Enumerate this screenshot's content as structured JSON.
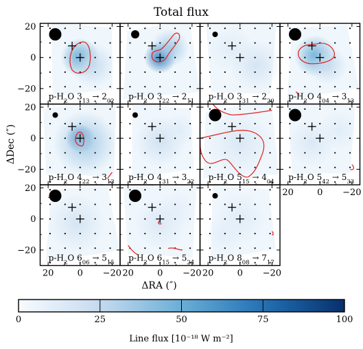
{
  "chart_data": {
    "type": "heatmap",
    "title": "Total flux",
    "xlabel": "ΔRA (″)",
    "ylabel": "ΔDec (″)",
    "xlim": [
      25,
      -25
    ],
    "ylim": [
      -30,
      22
    ],
    "x_ticks": [
      20,
      0,
      -20
    ],
    "y_ticks": [
      20,
      0,
      -20
    ],
    "x_tick_labels": [
      "20",
      "0",
      "−20"
    ],
    "y_tick_labels": [
      "20",
      "0",
      "−20"
    ],
    "grid": false,
    "colorbar": {
      "label": "Line flux [10⁻¹⁸ W m⁻²]",
      "range": [
        0,
        100
      ],
      "ticks": [
        0,
        25,
        50,
        75,
        100
      ],
      "tick_labels": [
        "0",
        "25",
        "50",
        "75",
        "100"
      ],
      "colormap": "Blues",
      "orientation": "horizontal"
    },
    "contour_color": "#e0201b",
    "grid_dot_spacing_arcsec": 9.4,
    "markers": {
      "central_cross": [
        0,
        0
      ],
      "offset_cross": [
        5,
        7.5
      ]
    },
    "panels": [
      {
        "label_prefix": "p-H",
        "label_sub": "2",
        "label_mid": "O ",
        "upper_j": "3",
        "upper_sub": "13",
        "lower_j": "2",
        "lower_sub": "02",
        "beam_size": "large",
        "contour_level": 50,
        "blobs": [
          {
            "x": 0,
            "y": 0,
            "r": 12,
            "a": 0.55
          },
          {
            "x": -8,
            "y": -5,
            "r": 14,
            "a": 0.25
          }
        ]
      },
      {
        "label_prefix": "p-H",
        "label_sub": "2",
        "label_mid": "O ",
        "upper_j": "3",
        "upper_sub": "22",
        "lower_j": "2",
        "lower_sub": "11",
        "beam_size": "medium",
        "contour_level": 50,
        "blobs": [
          {
            "x": 0,
            "y": 0,
            "r": 10,
            "a": 0.75
          },
          {
            "x": -6,
            "y": 6,
            "r": 12,
            "a": 0.35
          }
        ]
      },
      {
        "label_prefix": "p-H",
        "label_sub": "2",
        "label_mid": "O ",
        "upper_j": "3",
        "upper_sub": "31",
        "lower_j": "2",
        "lower_sub": "20",
        "beam_size": "small",
        "contour_level": 50,
        "blobs": [
          {
            "x": -10,
            "y": -5,
            "r": 16,
            "a": 0.18
          },
          {
            "x": 5,
            "y": 5,
            "r": 14,
            "a": 0.12
          }
        ]
      },
      {
        "label_prefix": "p-H",
        "label_sub": "2",
        "label_mid": "O ",
        "upper_j": "4",
        "upper_sub": "04",
        "lower_j": "3",
        "lower_sub": "13",
        "beam_size": "large",
        "contour_level": 50,
        "blobs": [
          {
            "x": 3,
            "y": 1,
            "r": 13,
            "a": 0.5
          },
          {
            "x": -5,
            "y": -5,
            "r": 12,
            "a": 0.25
          }
        ]
      },
      {
        "label_prefix": "p-H",
        "label_sub": "2",
        "label_mid": "O ",
        "upper_j": "4",
        "upper_sub": "22",
        "lower_j": "3",
        "lower_sub": "13",
        "beam_size": "small",
        "contour_level": 50,
        "blobs": [
          {
            "x": 0,
            "y": 0,
            "r": 9,
            "a": 0.8
          },
          {
            "x": -3,
            "y": -3,
            "r": 20,
            "a": 0.35
          }
        ]
      },
      {
        "label_prefix": "p-H",
        "label_sub": "2",
        "label_mid": "O ",
        "upper_j": "4",
        "upper_sub": "31",
        "lower_j": "3",
        "lower_sub": "22",
        "beam_size": "small",
        "contour_level": 50,
        "blobs": [
          {
            "x": 0,
            "y": -2,
            "r": 16,
            "a": 0.2
          },
          {
            "x": -12,
            "y": 5,
            "r": 10,
            "a": 0.12
          }
        ]
      },
      {
        "label_prefix": "p-H",
        "label_sub": "2",
        "label_mid": "O ",
        "upper_j": "5",
        "upper_sub": "15",
        "lower_j": "4",
        "lower_sub": "04",
        "beam_size": "large",
        "contour_level": 25,
        "blobs": [
          {
            "x": 0,
            "y": -3,
            "r": 20,
            "a": 0.15
          }
        ]
      },
      {
        "label_prefix": "p-H",
        "label_sub": "2",
        "label_mid": "O ",
        "upper_j": "5",
        "upper_sub": "42",
        "lower_j": "5",
        "lower_sub": "33",
        "beam_size": "large",
        "contour_level": 25,
        "blobs": [
          {
            "x": 5,
            "y": -3,
            "r": 15,
            "a": 0.15
          },
          {
            "x": -12,
            "y": 5,
            "r": 12,
            "a": 0.12
          }
        ]
      },
      {
        "label_prefix": "p-H",
        "label_sub": "2",
        "label_mid": "O ",
        "upper_j": "6",
        "upper_sub": "06",
        "lower_j": "5",
        "lower_sub": "15",
        "beam_size": "large",
        "contour_level": 25,
        "blobs": [
          {
            "x": 2,
            "y": -3,
            "r": 18,
            "a": 0.18
          }
        ]
      },
      {
        "label_prefix": "p-H",
        "label_sub": "2",
        "label_mid": "O ",
        "upper_j": "6",
        "upper_sub": "15",
        "lower_j": "5",
        "lower_sub": "24",
        "beam_size": "large",
        "contour_level": 25,
        "blobs": [
          {
            "x": 0,
            "y": -3,
            "r": 16,
            "a": 0.15
          },
          {
            "x": -10,
            "y": 5,
            "r": 12,
            "a": 0.1
          }
        ]
      },
      {
        "label_prefix": "p-H",
        "label_sub": "2",
        "label_mid": "O ",
        "upper_j": "8",
        "upper_sub": "08",
        "lower_j": "7",
        "lower_sub": "17",
        "beam_size": "small",
        "contour_level": 25,
        "blobs": [
          {
            "x": 0,
            "y": 0,
            "r": 16,
            "a": 0.12
          },
          {
            "x": 10,
            "y": -10,
            "r": 12,
            "a": 0.1
          }
        ]
      }
    ]
  }
}
